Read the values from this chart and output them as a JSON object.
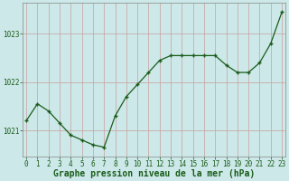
{
  "x": [
    0,
    1,
    2,
    3,
    4,
    5,
    6,
    7,
    8,
    9,
    10,
    11,
    12,
    13,
    14,
    15,
    16,
    17,
    18,
    19,
    20,
    21,
    22,
    23
  ],
  "y": [
    1021.2,
    1021.55,
    1021.4,
    1021.15,
    1020.9,
    1020.8,
    1020.7,
    1020.65,
    1021.3,
    1021.7,
    1021.95,
    1022.2,
    1022.45,
    1022.55,
    1022.55,
    1022.55,
    1022.55,
    1022.55,
    1022.35,
    1022.2,
    1022.2,
    1022.4,
    1022.8,
    1023.45
  ],
  "line_color": "#1a5c1a",
  "marker": "+",
  "marker_size": 3,
  "bg_color": "#cce8e8",
  "grid_color": "#b8c8c8",
  "grid_color_red": "#c8a0a0",
  "xlabel": "Graphe pression niveau de la mer (hPa)",
  "xlabel_fontsize": 7,
  "xlabel_color": "#1a5c1a",
  "yticks": [
    1021,
    1022,
    1023
  ],
  "xticks": [
    0,
    1,
    2,
    3,
    4,
    5,
    6,
    7,
    8,
    9,
    10,
    11,
    12,
    13,
    14,
    15,
    16,
    17,
    18,
    19,
    20,
    21,
    22,
    23
  ],
  "ylim": [
    1020.45,
    1023.65
  ],
  "tick_fontsize": 5.5,
  "tick_color": "#1a5c1a",
  "spine_color": "#888888"
}
